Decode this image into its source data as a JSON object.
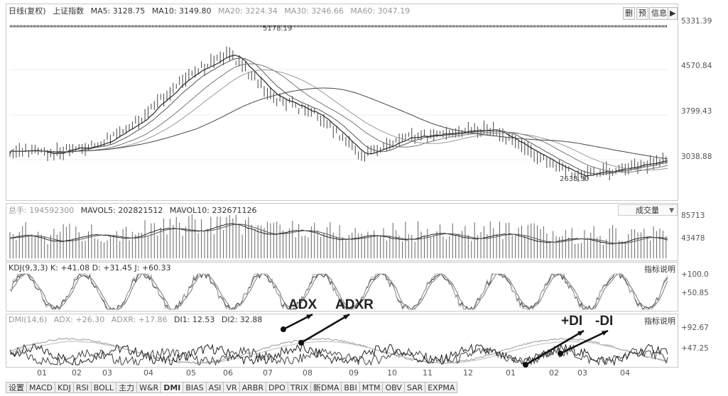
{
  "price_header": {
    "period": "日线(复权)",
    "index": "上证指数",
    "ma5": "MA5: 3128.75",
    "ma10": "MA10: 3149.80",
    "ma20": "MA20: 3224.34",
    "ma30": "MA30: 3246.66",
    "ma60": "MA60: 3047.19"
  },
  "toolbar": {
    "delete": "删",
    "predict": "预",
    "info": "信息",
    "exit_icon": "exit-arrow-icon"
  },
  "price_axis": [
    "5331.39",
    "4570.84",
    "3799.43",
    "3038.88"
  ],
  "price_annotations": {
    "high": "5178.19",
    "low": "2638.30"
  },
  "volume_header": {
    "total": "总手: 194592300",
    "mavol5": "MAVOL5: 202821512",
    "mavol10": "MAVOL10: 232671126"
  },
  "volume_select": "成交量",
  "volume_axis": [
    "85713",
    "43478"
  ],
  "kdj_header": "KDJ(9,3,3) K: +41.08 D: +31.45 J: +60.33",
  "kdj_help": "指标说明",
  "kdj_axis": [
    "+100.0",
    "+50.85"
  ],
  "dmi_header": {
    "dmi": "DMI(14,6)",
    "adx": "ADX: +26.30",
    "adxr": "ADXR: +17.86",
    "di1": "DI1: 12.53",
    "di2": "DI2: 32.88"
  },
  "dmi_help": "指标说明",
  "dmi_axis": [
    "+92.67",
    "+47.25"
  ],
  "annotations": {
    "adx": "ADX",
    "adxr": "ADXR",
    "pdi": "+DI",
    "mdi": "-DI"
  },
  "x_axis": [
    "01",
    "02",
    "03",
    "04",
    "05",
    "06",
    "07",
    "08",
    "09",
    "10",
    "11",
    "12",
    "01",
    "02",
    "03",
    "04"
  ],
  "tabs": [
    "设置",
    "MACD",
    "KDJ",
    "RSI",
    "BOLL",
    "主力",
    "W&R",
    "DMI",
    "BIAS",
    "ASI",
    "VR",
    "ARBR",
    "DPO",
    "TRIX",
    "新DMA",
    "BBI",
    "MTM",
    "OBV",
    "SAR",
    "EXPMA"
  ],
  "active_tab": "DMI",
  "chart_data": {
    "type": "line",
    "title": "上证指数",
    "x": [
      "01",
      "02",
      "03",
      "04",
      "05",
      "06",
      "07",
      "08",
      "09",
      "10",
      "11",
      "12",
      "01",
      "02",
      "03",
      "04"
    ],
    "series": [
      {
        "name": "上证指数",
        "values": [
          3200,
          3150,
          3300,
          3750,
          4450,
          4850,
          4100,
          3800,
          3100,
          3400,
          3500,
          3550,
          3100,
          2750,
          2900,
          3030
        ]
      }
    ],
    "ylim": [
      2400,
      5331.39
    ]
  }
}
